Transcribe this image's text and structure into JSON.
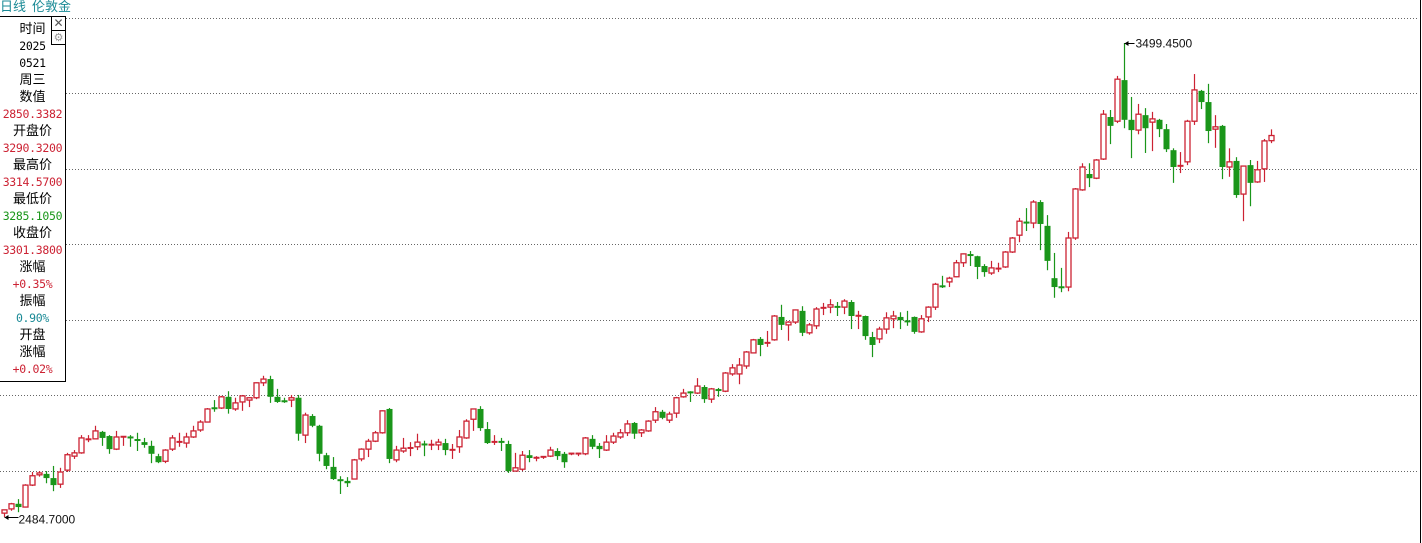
{
  "header": {
    "period": "日线",
    "symbol": "伦敦金",
    "color": "#1a8a96"
  },
  "panel": {
    "close_icon": "close-icon",
    "settings_icon": "gear-icon",
    "rows": [
      {
        "text": "时间",
        "color": "#000000",
        "num": false
      },
      {
        "text": "2025",
        "color": "#000000",
        "num": true
      },
      {
        "text": "0521",
        "color": "#000000",
        "num": true
      },
      {
        "text": "周三",
        "color": "#000000",
        "num": false
      },
      {
        "text": "数值",
        "color": "#000000",
        "num": false
      },
      {
        "text": "2850.3382",
        "color": "#cc2233",
        "num": true
      },
      {
        "text": "开盘价",
        "color": "#000000",
        "num": false
      },
      {
        "text": "3290.3200",
        "color": "#cc2233",
        "num": true
      },
      {
        "text": "最高价",
        "color": "#000000",
        "num": false
      },
      {
        "text": "3314.5700",
        "color": "#cc2233",
        "num": true
      },
      {
        "text": "最低价",
        "color": "#000000",
        "num": false
      },
      {
        "text": "3285.1050",
        "color": "#1a961a",
        "num": true
      },
      {
        "text": "收盘价",
        "color": "#000000",
        "num": false
      },
      {
        "text": "3301.3800",
        "color": "#cc2233",
        "num": true
      },
      {
        "text": "涨幅",
        "color": "#000000",
        "num": false
      },
      {
        "text": "+0.35%",
        "color": "#cc2233",
        "num": true
      },
      {
        "text": "振幅",
        "color": "#000000",
        "num": false
      },
      {
        "text": "0.90%",
        "color": "#1a8a96",
        "num": true
      },
      {
        "text": "开盘",
        "color": "#000000",
        "num": false
      },
      {
        "text": "涨幅",
        "color": "#000000",
        "num": false
      },
      {
        "text": "+0.02%",
        "color": "#cc2233",
        "num": true
      }
    ]
  },
  "chart_data": {
    "type": "candlestick",
    "title": "",
    "grid": true,
    "colors": {
      "up": "#cc2233",
      "down": "#1a961a"
    },
    "annotations": {
      "max_label": "3499.4500",
      "min_label": "2484.7000"
    },
    "ohlc_fields": [
      "open",
      "high",
      "low",
      "close"
    ],
    "candles": [
      [
        2493,
        2500,
        2484.7,
        2500
      ],
      [
        2502,
        2515,
        2498,
        2513
      ],
      [
        2513,
        2523,
        2495,
        2506
      ],
      [
        2506,
        2555,
        2505,
        2553
      ],
      [
        2553,
        2581,
        2551,
        2573
      ],
      [
        2575,
        2583,
        2571,
        2579
      ],
      [
        2577,
        2583,
        2557,
        2568
      ],
      [
        2568,
        2594,
        2540,
        2553
      ],
      [
        2555,
        2590,
        2547,
        2581
      ],
      [
        2585,
        2622,
        2581,
        2618
      ],
      [
        2615,
        2628,
        2609,
        2622
      ],
      [
        2622,
        2660,
        2620,
        2654
      ],
      [
        2650,
        2660,
        2645,
        2652
      ],
      [
        2652,
        2680,
        2651,
        2669
      ],
      [
        2667,
        2669,
        2637,
        2654
      ],
      [
        2658,
        2660,
        2620,
        2630
      ],
      [
        2630,
        2669,
        2628,
        2656
      ],
      [
        2656,
        2658,
        2637,
        2657
      ],
      [
        2656,
        2660,
        2635,
        2654
      ],
      [
        2650,
        2665,
        2626,
        2649
      ],
      [
        2645,
        2654,
        2633,
        2639
      ],
      [
        2637,
        2648,
        2600,
        2620
      ],
      [
        2615,
        2620,
        2600,
        2602
      ],
      [
        2604,
        2630,
        2600,
        2628
      ],
      [
        2630,
        2660,
        2626,
        2654
      ],
      [
        2645,
        2665,
        2635,
        2646
      ],
      [
        2643,
        2665,
        2633,
        2656
      ],
      [
        2656,
        2680,
        2654,
        2669
      ],
      [
        2671,
        2692,
        2667,
        2688
      ],
      [
        2688,
        2718,
        2687,
        2716
      ],
      [
        2718,
        2735,
        2710,
        2717
      ],
      [
        2718,
        2744,
        2716,
        2742
      ],
      [
        2742,
        2754,
        2706,
        2716
      ],
      [
        2716,
        2740,
        2712,
        2729
      ],
      [
        2731,
        2746,
        2712,
        2744
      ],
      [
        2735,
        2741,
        2720,
        2740
      ],
      [
        2740,
        2773,
        2737,
        2772
      ],
      [
        2772,
        2787,
        2765,
        2780
      ],
      [
        2780,
        2787,
        2729,
        2742
      ],
      [
        2742,
        2759,
        2729,
        2731
      ],
      [
        2733,
        2740,
        2729,
        2732
      ],
      [
        2735,
        2746,
        2720,
        2740
      ],
      [
        2740,
        2746,
        2648,
        2663
      ],
      [
        2660,
        2708,
        2643,
        2703
      ],
      [
        2701,
        2705,
        2677,
        2680
      ],
      [
        2680,
        2682,
        2604,
        2620
      ],
      [
        2617,
        2622,
        2587,
        2594
      ],
      [
        2592,
        2613,
        2564,
        2566
      ],
      [
        2564,
        2572,
        2534,
        2563
      ],
      [
        2562,
        2570,
        2549,
        2557
      ],
      [
        2566,
        2609,
        2565,
        2607
      ],
      [
        2609,
        2632,
        2604,
        2630
      ],
      [
        2630,
        2652,
        2613,
        2647
      ],
      [
        2647,
        2669,
        2645,
        2665
      ],
      [
        2665,
        2713,
        2663,
        2712
      ],
      [
        2716,
        2718,
        2600,
        2609
      ],
      [
        2607,
        2637,
        2602,
        2628
      ],
      [
        2626,
        2654,
        2622,
        2632
      ],
      [
        2632,
        2645,
        2615,
        2633
      ],
      [
        2635,
        2663,
        2628,
        2645
      ],
      [
        2641,
        2648,
        2615,
        2639
      ],
      [
        2639,
        2650,
        2628,
        2640
      ],
      [
        2639,
        2652,
        2628,
        2645
      ],
      [
        2643,
        2652,
        2617,
        2628
      ],
      [
        2628,
        2641,
        2609,
        2629
      ],
      [
        2635,
        2671,
        2622,
        2656
      ],
      [
        2654,
        2694,
        2652,
        2690
      ],
      [
        2694,
        2717,
        2669,
        2716
      ],
      [
        2716,
        2722,
        2669,
        2675
      ],
      [
        2673,
        2688,
        2641,
        2643
      ],
      [
        2645,
        2660,
        2639,
        2646
      ],
      [
        2646,
        2654,
        2626,
        2645
      ],
      [
        2641,
        2648,
        2579,
        2583
      ],
      [
        2583,
        2622,
        2582,
        2590
      ],
      [
        2587,
        2626,
        2583,
        2617
      ],
      [
        2617,
        2628,
        2602,
        2611
      ],
      [
        2611,
        2615,
        2604,
        2612
      ],
      [
        2613,
        2615,
        2609,
        2614
      ],
      [
        2615,
        2635,
        2613,
        2628
      ],
      [
        2626,
        2632,
        2607,
        2615
      ],
      [
        2620,
        2624,
        2590,
        2602
      ],
      [
        2620,
        2621,
        2617,
        2621
      ],
      [
        2620,
        2621,
        2615,
        2621
      ],
      [
        2620,
        2656,
        2617,
        2654
      ],
      [
        2652,
        2660,
        2630,
        2635
      ],
      [
        2637,
        2643,
        2611,
        2630
      ],
      [
        2628,
        2660,
        2626,
        2645
      ],
      [
        2645,
        2665,
        2641,
        2658
      ],
      [
        2656,
        2673,
        2652,
        2665
      ],
      [
        2665,
        2692,
        2658,
        2684
      ],
      [
        2686,
        2688,
        2652,
        2663
      ],
      [
        2665,
        2673,
        2656,
        2671
      ],
      [
        2669,
        2692,
        2667,
        2690
      ],
      [
        2692,
        2720,
        2686,
        2710
      ],
      [
        2710,
        2714,
        2694,
        2697
      ],
      [
        2692,
        2710,
        2686,
        2705
      ],
      [
        2707,
        2742,
        2697,
        2740
      ],
      [
        2742,
        2759,
        2740,
        2750
      ],
      [
        2752,
        2754,
        2731,
        2751
      ],
      [
        2750,
        2782,
        2748,
        2765
      ],
      [
        2763,
        2767,
        2729,
        2737
      ],
      [
        2737,
        2761,
        2729,
        2759
      ],
      [
        2757,
        2761,
        2742,
        2756
      ],
      [
        2754,
        2795,
        2752,
        2793
      ],
      [
        2791,
        2812,
        2787,
        2804
      ],
      [
        2791,
        2825,
        2769,
        2810
      ],
      [
        2808,
        2840,
        2802,
        2838
      ],
      [
        2836,
        2866,
        2835,
        2864
      ],
      [
        2866,
        2870,
        2829,
        2853
      ],
      [
        2857,
        2883,
        2849,
        2858
      ],
      [
        2864,
        2917,
        2862,
        2915
      ],
      [
        2913,
        2939,
        2885,
        2896
      ],
      [
        2896,
        2904,
        2862,
        2902
      ],
      [
        2902,
        2929,
        2898,
        2928
      ],
      [
        2926,
        2936,
        2872,
        2879
      ],
      [
        2879,
        2900,
        2875,
        2896
      ],
      [
        2894,
        2934,
        2887,
        2930
      ],
      [
        2932,
        2943,
        2917,
        2933
      ],
      [
        2934,
        2951,
        2921,
        2939
      ],
      [
        2935,
        2945,
        2915,
        2934
      ],
      [
        2934,
        2951,
        2919,
        2947
      ],
      [
        2945,
        2949,
        2887,
        2915
      ],
      [
        2915,
        2926,
        2887,
        2916
      ],
      [
        2915,
        2916,
        2864,
        2872
      ],
      [
        2870,
        2881,
        2827,
        2853
      ],
      [
        2866,
        2892,
        2857,
        2887
      ],
      [
        2887,
        2923,
        2877,
        2911
      ],
      [
        2909,
        2926,
        2889,
        2915
      ],
      [
        2913,
        2923,
        2887,
        2906
      ],
      [
        2904,
        2926,
        2894,
        2903
      ],
      [
        2913,
        2914,
        2877,
        2881
      ],
      [
        2881,
        2917,
        2879,
        2909
      ],
      [
        2913,
        2936,
        2902,
        2934
      ],
      [
        2934,
        2986,
        2928,
        2983
      ],
      [
        2979,
        3001,
        2975,
        2978
      ],
      [
        2988,
        2999,
        2977,
        2996
      ],
      [
        2999,
        3035,
        2998,
        3029
      ],
      [
        3029,
        3049,
        3020,
        3048
      ],
      [
        3046,
        3054,
        3022,
        3045
      ],
      [
        3043,
        3044,
        2994,
        3020
      ],
      [
        3022,
        3026,
        2999,
        3009
      ],
      [
        3007,
        3033,
        3003,
        3018
      ],
      [
        3016,
        3029,
        3009,
        3017
      ],
      [
        3020,
        3054,
        3018,
        3052
      ],
      [
        3052,
        3084,
        3050,
        3082
      ],
      [
        3088,
        3125,
        3073,
        3118
      ],
      [
        3116,
        3146,
        3097,
        3114
      ],
      [
        3114,
        3163,
        3103,
        3159
      ],
      [
        3159,
        3163,
        3056,
        3112
      ],
      [
        3108,
        3131,
        3013,
        3033
      ],
      [
        2996,
        3050,
        2954,
        2977
      ],
      [
        2977,
        3018,
        2966,
        2976
      ],
      [
        2977,
        3095,
        2968,
        3082
      ],
      [
        3082,
        3189,
        3078,
        3187
      ],
      [
        3185,
        3242,
        3183,
        3234
      ],
      [
        3219,
        3242,
        3191,
        3210
      ],
      [
        3210,
        3251,
        3208,
        3249
      ],
      [
        3251,
        3356,
        3249,
        3347
      ],
      [
        3341,
        3356,
        3283,
        3322
      ],
      [
        3332,
        3429,
        3328,
        3422
      ],
      [
        3420,
        3499.45,
        3317,
        3335
      ],
      [
        3335,
        3384,
        3253,
        3313
      ],
      [
        3313,
        3369,
        3304,
        3347
      ],
      [
        3345,
        3360,
        3264,
        3317
      ],
      [
        3330,
        3352,
        3268,
        3337
      ],
      [
        3335,
        3337,
        3298,
        3315
      ],
      [
        3315,
        3326,
        3266,
        3272
      ],
      [
        3270,
        3274,
        3200,
        3234
      ],
      [
        3236,
        3266,
        3221,
        3237
      ],
      [
        3245,
        3335,
        3238,
        3332
      ],
      [
        3332,
        3433,
        3324,
        3399
      ],
      [
        3397,
        3399,
        3358,
        3373
      ],
      [
        3373,
        3412,
        3285,
        3311
      ],
      [
        3315,
        3345,
        3275,
        3320
      ],
      [
        3322,
        3324,
        3208,
        3234
      ],
      [
        3234,
        3274,
        3213,
        3245
      ],
      [
        3247,
        3255,
        3168,
        3174
      ],
      [
        3176,
        3237,
        3118,
        3236
      ],
      [
        3238,
        3249,
        3150,
        3200
      ],
      [
        3202,
        3247,
        3200,
        3228
      ],
      [
        3230,
        3294,
        3202,
        3289.9
      ],
      [
        3290.32,
        3314.57,
        3285.105,
        3301.38
      ]
    ]
  }
}
